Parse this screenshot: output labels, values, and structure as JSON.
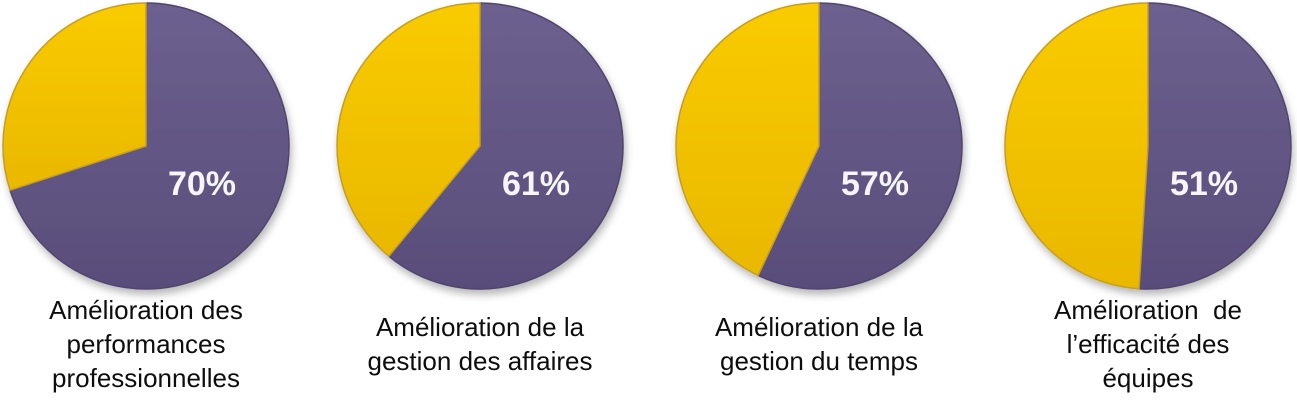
{
  "chart_data": {
    "type": "pie",
    "layout": "row-of-4-pies",
    "legend": "none",
    "start_angle_deg": 0,
    "direction": "clockwise",
    "labels_inside": true,
    "charts": [
      {
        "caption": "Amélioration des\nperformances\nprofessionnelles",
        "slices": [
          {
            "name": "value",
            "pct": 70,
            "label": "70%"
          },
          {
            "name": "remainder",
            "pct": 30,
            "label": ""
          }
        ]
      },
      {
        "caption": "Amélioration de la\ngestion des affaires",
        "slices": [
          {
            "name": "value",
            "pct": 61,
            "label": "61%"
          },
          {
            "name": "remainder",
            "pct": 39,
            "label": ""
          }
        ]
      },
      {
        "caption": "Amélioration de la\ngestion du temps",
        "slices": [
          {
            "name": "value",
            "pct": 57,
            "label": "57%"
          },
          {
            "name": "remainder",
            "pct": 43,
            "label": ""
          }
        ]
      },
      {
        "caption": "Amélioration  de\nl’efficacité des\néquipes",
        "slices": [
          {
            "name": "value",
            "pct": 51,
            "label": "51%"
          },
          {
            "name": "remainder",
            "pct": 49,
            "label": ""
          }
        ]
      }
    ]
  },
  "style": {
    "value_slice_color": "#5E5280",
    "value_slice_gradient_top": "#6C608F",
    "value_slice_gradient_bottom": "#594D7A",
    "value_slice_stroke": "#51456E",
    "remainder_slice_color": "#F2C000",
    "remainder_slice_gradient_top": "#F9CB06",
    "remainder_slice_gradient_bottom": "#E9B800",
    "remainder_slice_stroke": "#C59E24",
    "percent_label_color": "#F7F5FA",
    "caption_color": "#0D0D0D",
    "background_color": "#FFFFFF"
  }
}
